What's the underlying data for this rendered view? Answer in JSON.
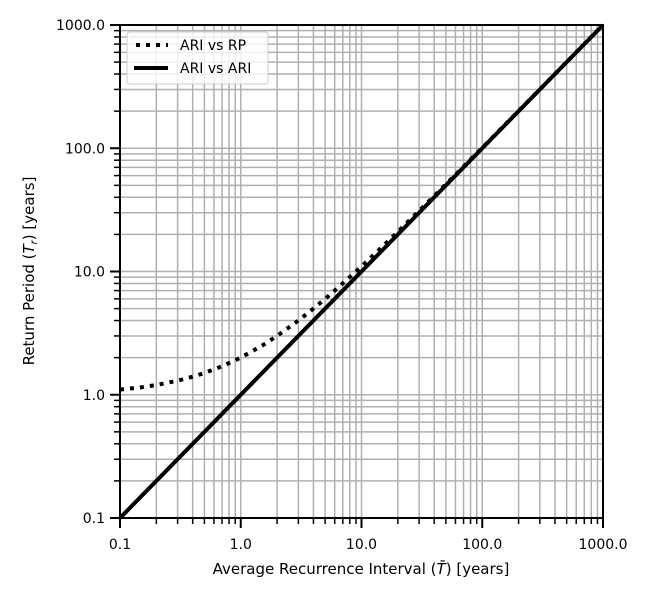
{
  "chart_data": {
    "type": "line",
    "title": "",
    "xlabel": "Average Recurrence Interval ($\\bar{T}$) [years]",
    "xlabel_parts": [
      "Average Recurrence Interval (",
      "T̄",
      ") [years]"
    ],
    "ylabel_parts": [
      "Return Period (",
      "T",
      "r",
      ") [years]"
    ],
    "x_scale": "log",
    "y_scale": "log",
    "xlim": [
      0.1,
      1000
    ],
    "ylim": [
      0.1,
      1000
    ],
    "xticks": [
      0.1,
      1,
      10,
      100,
      1000
    ],
    "xtick_labels": [
      "0.1",
      "1.0",
      "10.0",
      "100.0",
      "1000.0"
    ],
    "yticks": [
      0.1,
      1,
      10,
      100,
      1000
    ],
    "ytick_labels": [
      "0.1",
      "1.0",
      "10.0",
      "100.0",
      "1000.0"
    ],
    "grid": "major and minor",
    "grid_color": "#b0b0b0",
    "legend_placement": "top-left",
    "series": [
      {
        "name": "ARI vs RP",
        "style": "dotted",
        "color": "#000000",
        "x": [
          0.1,
          0.15,
          0.2,
          0.3,
          0.4,
          0.5,
          0.7,
          1,
          1.5,
          2,
          3,
          4,
          5,
          7,
          10,
          15,
          20,
          30,
          50,
          70,
          100,
          200,
          300,
          500,
          1000
        ],
        "y": [
          1.1,
          1.15,
          1.2,
          1.3,
          1.4,
          1.5,
          1.7,
          2,
          2.5,
          3,
          4,
          5,
          6,
          8,
          11,
          16,
          21,
          31,
          51,
          71,
          101,
          201,
          301,
          501,
          1001
        ]
      },
      {
        "name": "ARI vs ARI",
        "style": "solid",
        "color": "#000000",
        "x": [
          0.1,
          1000
        ],
        "y": [
          0.1,
          1000
        ]
      }
    ]
  }
}
